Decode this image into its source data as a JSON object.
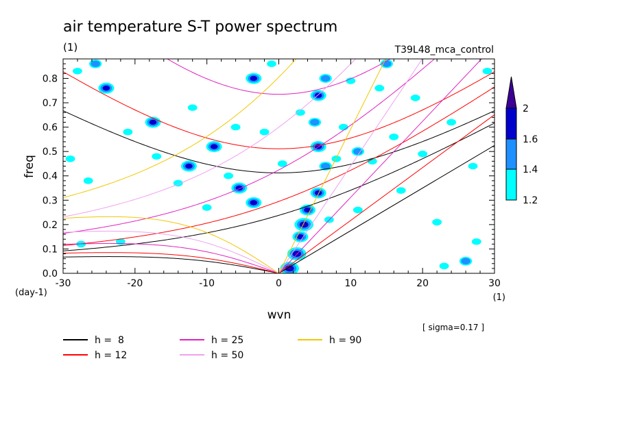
{
  "chart_data": {
    "type": "heatmap",
    "title": "air temperature S-T power spectrum",
    "subtitle_left": "(1)",
    "subtitle_right": "T39L48_mca_control",
    "xlabel": "wvn",
    "ylabel": "freq",
    "x_unit": "(1)",
    "y_unit": "(day-1)",
    "xlim": [
      -30,
      30
    ],
    "ylim": [
      0,
      0.88
    ],
    "xticks": [
      "-30",
      "-20",
      "-10",
      "0",
      "10",
      "20",
      "30"
    ],
    "yticks": [
      "0.0",
      "0.1",
      "0.2",
      "0.3",
      "0.4",
      "0.5",
      "0.6",
      "0.7",
      "0.8"
    ],
    "note": "[ sigma=0.17 ]",
    "colorbar": {
      "levels": [
        "1.2",
        "1.4",
        "1.6",
        "2"
      ],
      "colors": [
        "#00ffff",
        "#1e90ff",
        "#0000cd",
        "#3c0096"
      ]
    },
    "dispersion_curves": [
      {
        "name": "h =  8",
        "h": 8,
        "color": "#000000"
      },
      {
        "name": "h = 12",
        "h": 12,
        "color": "#ff0000"
      },
      {
        "name": "h = 25",
        "h": 25,
        "color": "#e020c0"
      },
      {
        "name": "h = 50",
        "h": 50,
        "color": "#f0a0f0"
      },
      {
        "name": "h = 90",
        "h": 90,
        "color": "#f0c800"
      }
    ],
    "kelvin_slopes_per_wvn": [
      {
        "h": 8,
        "slope": 0.0175
      },
      {
        "h": 12,
        "slope": 0.0217
      },
      {
        "h": 25,
        "slope": 0.0312
      },
      {
        "h": 50,
        "slope": 0.0441
      },
      {
        "h": 90,
        "slope": 0.0592
      }
    ],
    "spectral_blobs": [
      {
        "x": 1.5,
        "y": 0.02,
        "level": 4
      },
      {
        "x": 2.5,
        "y": 0.08,
        "level": 4
      },
      {
        "x": 3.0,
        "y": 0.15,
        "level": 3
      },
      {
        "x": 3.5,
        "y": 0.2,
        "level": 4
      },
      {
        "x": 4.0,
        "y": 0.26,
        "level": 3
      },
      {
        "x": 5.5,
        "y": 0.33,
        "level": 3
      },
      {
        "x": 6.5,
        "y": 0.44,
        "level": 2
      },
      {
        "x": 5.5,
        "y": 0.52,
        "level": 3
      },
      {
        "x": 5.0,
        "y": 0.62,
        "level": 2
      },
      {
        "x": 5.5,
        "y": 0.73,
        "level": 3
      },
      {
        "x": 6.5,
        "y": 0.8,
        "level": 2
      },
      {
        "x": 11.0,
        "y": 0.5,
        "level": 2
      },
      {
        "x": -5.5,
        "y": 0.35,
        "level": 3
      },
      {
        "x": -3.5,
        "y": 0.29,
        "level": 3
      },
      {
        "x": -9.0,
        "y": 0.52,
        "level": 3
      },
      {
        "x": -12.5,
        "y": 0.44,
        "level": 3
      },
      {
        "x": -17.5,
        "y": 0.62,
        "level": 3
      },
      {
        "x": -24.0,
        "y": 0.76,
        "level": 3
      },
      {
        "x": -25.5,
        "y": 0.86,
        "level": 2
      },
      {
        "x": -3.5,
        "y": 0.8,
        "level": 3
      },
      {
        "x": 15.0,
        "y": 0.86,
        "level": 2
      },
      {
        "x": 26.0,
        "y": 0.05,
        "level": 2
      },
      {
        "x": -12.0,
        "y": 0.68,
        "level": 1
      },
      {
        "x": -14.0,
        "y": 0.37,
        "level": 1
      },
      {
        "x": -17.0,
        "y": 0.48,
        "level": 1
      },
      {
        "x": -21.0,
        "y": 0.58,
        "level": 1
      },
      {
        "x": -28.0,
        "y": 0.83,
        "level": 1
      },
      {
        "x": 8.0,
        "y": 0.47,
        "level": 1
      },
      {
        "x": 9.0,
        "y": 0.6,
        "level": 1
      },
      {
        "x": 13.0,
        "y": 0.46,
        "level": 1
      },
      {
        "x": 16.0,
        "y": 0.56,
        "level": 1
      },
      {
        "x": 20.0,
        "y": 0.49,
        "level": 1
      },
      {
        "x": 14.0,
        "y": 0.76,
        "level": 1
      },
      {
        "x": 19.0,
        "y": 0.72,
        "level": 1
      },
      {
        "x": 27.0,
        "y": 0.44,
        "level": 1
      },
      {
        "x": 27.5,
        "y": 0.13,
        "level": 1
      },
      {
        "x": 23.0,
        "y": 0.03,
        "level": 1
      },
      {
        "x": 22.0,
        "y": 0.21,
        "level": 1
      },
      {
        "x": -27.5,
        "y": 0.12,
        "level": 1
      },
      {
        "x": -22.0,
        "y": 0.13,
        "level": 1
      },
      {
        "x": -26.5,
        "y": 0.38,
        "level": 1
      },
      {
        "x": -29.0,
        "y": 0.47,
        "level": 1
      },
      {
        "x": -10.0,
        "y": 0.27,
        "level": 1
      },
      {
        "x": -7.0,
        "y": 0.4,
        "level": 1
      },
      {
        "x": -6.0,
        "y": 0.6,
        "level": 1
      },
      {
        "x": -2.0,
        "y": 0.58,
        "level": 1
      },
      {
        "x": 0.5,
        "y": 0.45,
        "level": 1
      },
      {
        "x": -1.0,
        "y": 0.86,
        "level": 1
      },
      {
        "x": 10.0,
        "y": 0.79,
        "level": 1
      },
      {
        "x": 3.0,
        "y": 0.66,
        "level": 1
      },
      {
        "x": 7.0,
        "y": 0.22,
        "level": 1
      },
      {
        "x": 11.0,
        "y": 0.26,
        "level": 1
      },
      {
        "x": 17.0,
        "y": 0.34,
        "level": 1
      },
      {
        "x": 24.0,
        "y": 0.62,
        "level": 1
      },
      {
        "x": 29.0,
        "y": 0.83,
        "level": 1
      }
    ]
  }
}
